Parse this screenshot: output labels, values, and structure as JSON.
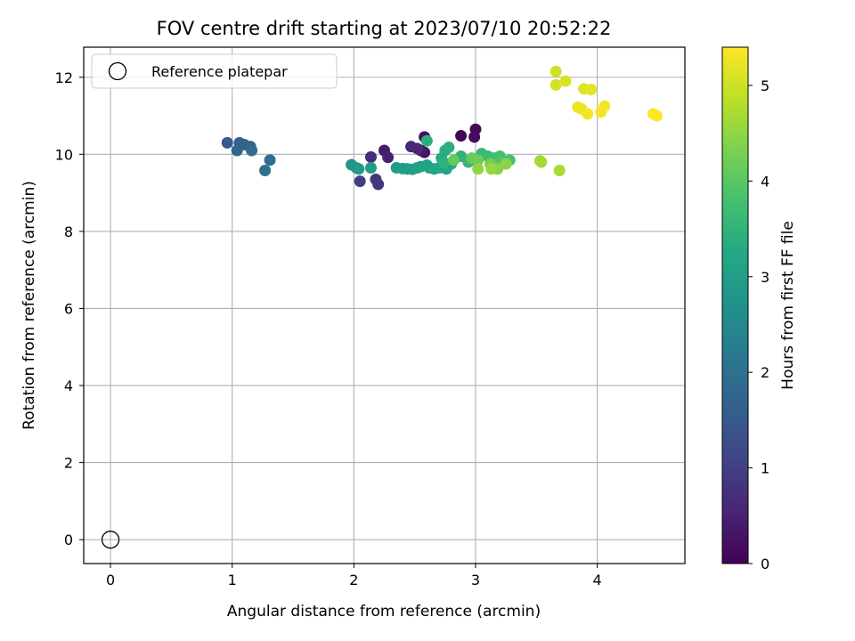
{
  "chart_data": {
    "type": "scatter",
    "title": "FOV centre drift starting at 2023/07/10 20:52:22",
    "xlabel": "Angular distance from reference (arcmin)",
    "ylabel": "Rotation from reference (arcmin)",
    "xlim": [
      -0.22,
      4.72
    ],
    "ylim": [
      -0.62,
      12.78
    ],
    "xticks": [
      0,
      1,
      2,
      3,
      4
    ],
    "yticks": [
      0,
      2,
      4,
      6,
      8,
      10,
      12
    ],
    "grid": true,
    "legend": {
      "position": "top-left",
      "entries": [
        "Reference platepar"
      ]
    },
    "colorbar": {
      "label": "Hours from first FF file",
      "min": 0,
      "max": 5.4,
      "ticks": [
        0,
        1,
        2,
        3,
        4,
        5
      ],
      "colormap": "viridis"
    },
    "reference_point": {
      "x": 0,
      "y": 0
    },
    "points": [
      {
        "x": 2.88,
        "y": 10.48,
        "c": 0.05
      },
      {
        "x": 3.0,
        "y": 10.65,
        "c": 0.1
      },
      {
        "x": 2.99,
        "y": 10.45,
        "c": 0.15
      },
      {
        "x": 2.58,
        "y": 10.45,
        "c": 0.2
      },
      {
        "x": 2.58,
        "y": 10.05,
        "c": 0.3
      },
      {
        "x": 2.55,
        "y": 10.1,
        "c": 0.35
      },
      {
        "x": 2.25,
        "y": 10.1,
        "c": 0.4
      },
      {
        "x": 2.28,
        "y": 9.92,
        "c": 0.5
      },
      {
        "x": 2.47,
        "y": 10.2,
        "c": 0.55
      },
      {
        "x": 2.52,
        "y": 10.15,
        "c": 0.6
      },
      {
        "x": 2.14,
        "y": 9.93,
        "c": 0.7
      },
      {
        "x": 2.18,
        "y": 9.35,
        "c": 0.8
      },
      {
        "x": 2.2,
        "y": 9.22,
        "c": 0.85
      },
      {
        "x": 2.05,
        "y": 9.3,
        "c": 1.0
      },
      {
        "x": 0.96,
        "y": 10.3,
        "c": 1.5
      },
      {
        "x": 1.06,
        "y": 10.3,
        "c": 1.65
      },
      {
        "x": 1.1,
        "y": 10.25,
        "c": 1.7
      },
      {
        "x": 1.15,
        "y": 10.2,
        "c": 1.75
      },
      {
        "x": 1.04,
        "y": 10.1,
        "c": 1.8
      },
      {
        "x": 1.16,
        "y": 10.1,
        "c": 1.9
      },
      {
        "x": 1.31,
        "y": 9.85,
        "c": 1.95
      },
      {
        "x": 1.27,
        "y": 9.58,
        "c": 2.0
      },
      {
        "x": 1.98,
        "y": 9.73,
        "c": 2.8
      },
      {
        "x": 2.02,
        "y": 9.65,
        "c": 2.85
      },
      {
        "x": 2.04,
        "y": 9.62,
        "c": 2.9
      },
      {
        "x": 2.14,
        "y": 9.65,
        "c": 2.9
      },
      {
        "x": 2.35,
        "y": 9.65,
        "c": 2.95
      },
      {
        "x": 2.4,
        "y": 9.63,
        "c": 3.0
      },
      {
        "x": 2.44,
        "y": 9.62,
        "c": 3.0
      },
      {
        "x": 2.48,
        "y": 9.61,
        "c": 3.05
      },
      {
        "x": 2.52,
        "y": 9.65,
        "c": 3.05
      },
      {
        "x": 2.55,
        "y": 9.68,
        "c": 3.1
      },
      {
        "x": 2.6,
        "y": 9.72,
        "c": 3.1
      },
      {
        "x": 2.62,
        "y": 9.65,
        "c": 3.15
      },
      {
        "x": 2.66,
        "y": 9.62,
        "c": 3.2
      },
      {
        "x": 2.7,
        "y": 9.65,
        "c": 3.25
      },
      {
        "x": 2.72,
        "y": 9.9,
        "c": 3.3
      },
      {
        "x": 2.75,
        "y": 10.1,
        "c": 3.35
      },
      {
        "x": 2.78,
        "y": 10.18,
        "c": 3.4
      },
      {
        "x": 2.8,
        "y": 9.75,
        "c": 3.3
      },
      {
        "x": 2.76,
        "y": 9.62,
        "c": 3.2
      },
      {
        "x": 2.6,
        "y": 10.35,
        "c": 3.4
      },
      {
        "x": 2.74,
        "y": 9.78,
        "c": 3.45
      },
      {
        "x": 2.88,
        "y": 9.95,
        "c": 3.5
      },
      {
        "x": 2.94,
        "y": 9.8,
        "c": 3.55
      },
      {
        "x": 2.98,
        "y": 9.85,
        "c": 3.6
      },
      {
        "x": 3.05,
        "y": 10.02,
        "c": 3.6
      },
      {
        "x": 3.1,
        "y": 9.95,
        "c": 3.65
      },
      {
        "x": 3.15,
        "y": 9.9,
        "c": 3.7
      },
      {
        "x": 3.2,
        "y": 9.95,
        "c": 3.75
      },
      {
        "x": 3.28,
        "y": 9.85,
        "c": 3.8
      },
      {
        "x": 3.2,
        "y": 9.8,
        "c": 3.9
      },
      {
        "x": 2.82,
        "y": 9.85,
        "c": 4.1
      },
      {
        "x": 2.97,
        "y": 9.9,
        "c": 4.15
      },
      {
        "x": 3.02,
        "y": 9.85,
        "c": 4.2
      },
      {
        "x": 3.12,
        "y": 9.75,
        "c": 4.3
      },
      {
        "x": 3.18,
        "y": 9.62,
        "c": 4.4
      },
      {
        "x": 3.25,
        "y": 9.75,
        "c": 4.45
      },
      {
        "x": 3.02,
        "y": 9.62,
        "c": 4.5
      },
      {
        "x": 3.13,
        "y": 9.62,
        "c": 4.55
      },
      {
        "x": 3.54,
        "y": 9.8,
        "c": 4.6
      },
      {
        "x": 3.53,
        "y": 9.83,
        "c": 4.65
      },
      {
        "x": 3.69,
        "y": 9.58,
        "c": 4.7
      },
      {
        "x": 3.66,
        "y": 12.15,
        "c": 5.0
      },
      {
        "x": 3.66,
        "y": 11.8,
        "c": 5.05
      },
      {
        "x": 3.74,
        "y": 11.9,
        "c": 5.1
      },
      {
        "x": 3.89,
        "y": 11.7,
        "c": 5.15
      },
      {
        "x": 3.95,
        "y": 11.68,
        "c": 5.2
      },
      {
        "x": 3.84,
        "y": 11.22,
        "c": 5.25
      },
      {
        "x": 3.87,
        "y": 11.18,
        "c": 5.25
      },
      {
        "x": 3.92,
        "y": 11.05,
        "c": 5.3
      },
      {
        "x": 4.03,
        "y": 11.1,
        "c": 5.3
      },
      {
        "x": 4.06,
        "y": 11.25,
        "c": 5.32
      },
      {
        "x": 4.46,
        "y": 11.05,
        "c": 5.38
      },
      {
        "x": 4.49,
        "y": 11.0,
        "c": 5.4
      }
    ]
  }
}
